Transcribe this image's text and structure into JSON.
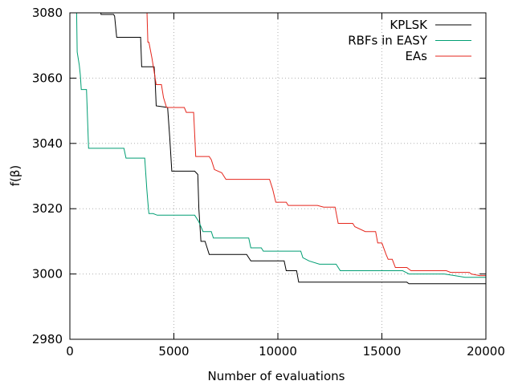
{
  "chart_data": {
    "type": "line",
    "title": "",
    "xlabel": "Number of evaluations",
    "ylabel": "f(β)",
    "xlim": [
      0,
      20000
    ],
    "ylim": [
      2980,
      3080
    ],
    "x_ticks": [
      0,
      5000,
      10000,
      15000,
      20000
    ],
    "y_ticks": [
      2980,
      3000,
      3020,
      3040,
      3060,
      3080
    ],
    "x_tick_labels": [
      "0",
      "5000",
      "10000",
      "15000",
      "20000"
    ],
    "y_tick_labels": [
      "2980",
      "3000",
      "3020",
      "3040",
      "3060",
      "3080"
    ],
    "grid": true,
    "legend_position": "top-right",
    "series": [
      {
        "name": "KPLSK",
        "color": "#000000",
        "points": [
          [
            1450,
            3082
          ],
          [
            1500,
            3079.5
          ],
          [
            2100,
            3079.5
          ],
          [
            2150,
            3079
          ],
          [
            2250,
            3072.5
          ],
          [
            3400,
            3072.5
          ],
          [
            3450,
            3063.5
          ],
          [
            4050,
            3063.5
          ],
          [
            4100,
            3059
          ],
          [
            4150,
            3051.5
          ],
          [
            4700,
            3051
          ],
          [
            4800,
            3042
          ],
          [
            4900,
            3031.5
          ],
          [
            6000,
            3031.5
          ],
          [
            6150,
            3030.5
          ],
          [
            6200,
            3020
          ],
          [
            6300,
            3010
          ],
          [
            6500,
            3010
          ],
          [
            6600,
            3008
          ],
          [
            6700,
            3006
          ],
          [
            8500,
            3006
          ],
          [
            8700,
            3004
          ],
          [
            10300,
            3004
          ],
          [
            10400,
            3001
          ],
          [
            10900,
            3001
          ],
          [
            11000,
            2997.5
          ],
          [
            16200,
            2997.5
          ],
          [
            16300,
            2997
          ],
          [
            20000,
            2997
          ]
        ]
      },
      {
        "name": "RBFs in EASY",
        "color": "#009e73",
        "points": [
          [
            320,
            3082
          ],
          [
            350,
            3068
          ],
          [
            400,
            3066
          ],
          [
            450,
            3064
          ],
          [
            500,
            3061
          ],
          [
            550,
            3056.5
          ],
          [
            800,
            3056.5
          ],
          [
            900,
            3038.5
          ],
          [
            2600,
            3038.5
          ],
          [
            2700,
            3035.5
          ],
          [
            3600,
            3035.5
          ],
          [
            3700,
            3026
          ],
          [
            3750,
            3022
          ],
          [
            3800,
            3018.5
          ],
          [
            4000,
            3018.5
          ],
          [
            4200,
            3018
          ],
          [
            6000,
            3018
          ],
          [
            6200,
            3016
          ],
          [
            6400,
            3013
          ],
          [
            6800,
            3013
          ],
          [
            6900,
            3011
          ],
          [
            8600,
            3011
          ],
          [
            8700,
            3008
          ],
          [
            9200,
            3008
          ],
          [
            9300,
            3007
          ],
          [
            11100,
            3007
          ],
          [
            11200,
            3005
          ],
          [
            11500,
            3004
          ],
          [
            12000,
            3003
          ],
          [
            12800,
            3003
          ],
          [
            13000,
            3001
          ],
          [
            16000,
            3001
          ],
          [
            16300,
            3000
          ],
          [
            18000,
            3000
          ],
          [
            18500,
            2999.5
          ],
          [
            19000,
            2999
          ],
          [
            20000,
            2999
          ]
        ]
      },
      {
        "name": "EAs",
        "color": "#e5261c",
        "points": [
          [
            3700,
            3082
          ],
          [
            3750,
            3071
          ],
          [
            3800,
            3071
          ],
          [
            3950,
            3066
          ],
          [
            4150,
            3058
          ],
          [
            4400,
            3058
          ],
          [
            4500,
            3054
          ],
          [
            4650,
            3051
          ],
          [
            5500,
            3051
          ],
          [
            5600,
            3049.5
          ],
          [
            5950,
            3049.5
          ],
          [
            6050,
            3036
          ],
          [
            6700,
            3036
          ],
          [
            6800,
            3035
          ],
          [
            6950,
            3032
          ],
          [
            7300,
            3031
          ],
          [
            7500,
            3029
          ],
          [
            9600,
            3029
          ],
          [
            9750,
            3026
          ],
          [
            9900,
            3022
          ],
          [
            10400,
            3022
          ],
          [
            10500,
            3021
          ],
          [
            11900,
            3021
          ],
          [
            12200,
            3020.5
          ],
          [
            12750,
            3020.5
          ],
          [
            12900,
            3015.5
          ],
          [
            13600,
            3015.5
          ],
          [
            13700,
            3014.5
          ],
          [
            14200,
            3013
          ],
          [
            14700,
            3013
          ],
          [
            14800,
            3009.5
          ],
          [
            15000,
            3009.5
          ],
          [
            15200,
            3006
          ],
          [
            15300,
            3004.5
          ],
          [
            15500,
            3004.5
          ],
          [
            15650,
            3002
          ],
          [
            16200,
            3002
          ],
          [
            16400,
            3001
          ],
          [
            18100,
            3001
          ],
          [
            18300,
            3000.5
          ],
          [
            19200,
            3000.5
          ],
          [
            19300,
            3000
          ],
          [
            19700,
            2999.5
          ],
          [
            20000,
            2999.5
          ]
        ]
      }
    ]
  }
}
